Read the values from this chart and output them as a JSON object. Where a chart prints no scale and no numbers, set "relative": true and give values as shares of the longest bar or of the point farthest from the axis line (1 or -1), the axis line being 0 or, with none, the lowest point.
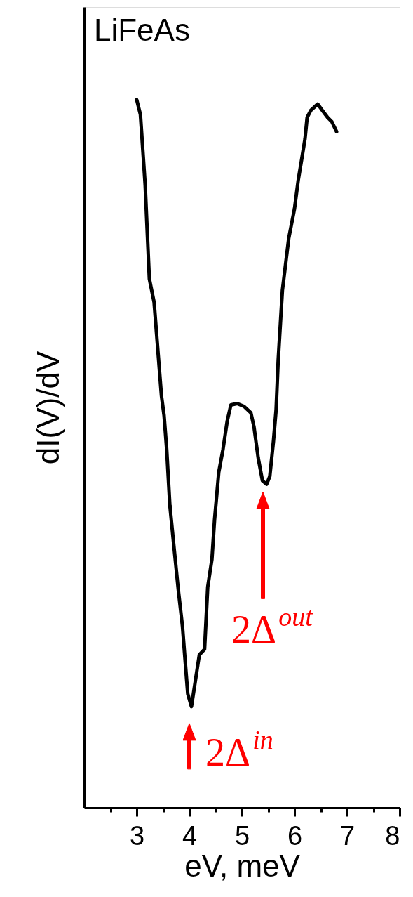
{
  "chart_data": {
    "type": "line",
    "title": "LiFeAs",
    "xlabel": "eV, meV",
    "ylabel": "dI(V)/dV",
    "relative": true,
    "xlim": [
      2,
      8
    ],
    "xticks": [
      {
        "value": 2.5,
        "label": null
      },
      3,
      {
        "value": 3.5,
        "label": null
      },
      4,
      {
        "value": 4.5,
        "label": null
      },
      5,
      {
        "value": 5.5,
        "label": null
      },
      6,
      {
        "value": 6.5,
        "label": null
      },
      7,
      {
        "value": 7.5,
        "label": null
      },
      8
    ],
    "grid": false,
    "marker": "none",
    "line_style": "solid",
    "x": [
      3.0,
      3.07,
      3.16,
      3.2,
      3.24,
      3.33,
      3.4,
      3.47,
      3.52,
      3.57,
      3.63,
      3.71,
      3.79,
      3.87,
      3.92,
      3.97,
      4.04,
      4.11,
      4.19,
      4.29,
      4.35,
      4.43,
      4.48,
      4.56,
      4.64,
      4.72,
      4.79,
      4.91,
      5.04,
      5.17,
      5.23,
      5.31,
      5.39,
      5.47,
      5.53,
      5.6,
      5.65,
      5.69,
      5.77,
      5.89,
      6.0,
      6.07,
      6.13,
      6.2,
      6.24,
      6.31,
      6.44,
      6.53,
      6.63,
      6.71,
      6.8
    ],
    "series": [
      {
        "color": "#000000",
        "values": [
          1.0,
          0.979,
          0.88,
          0.813,
          0.747,
          0.714,
          0.648,
          0.582,
          0.554,
          0.506,
          0.427,
          0.367,
          0.308,
          0.256,
          0.208,
          0.161,
          0.143,
          0.177,
          0.216,
          0.224,
          0.312,
          0.351,
          0.407,
          0.474,
          0.506,
          0.546,
          0.569,
          0.571,
          0.567,
          0.558,
          0.538,
          0.494,
          0.462,
          0.457,
          0.468,
          0.518,
          0.562,
          0.632,
          0.731,
          0.804,
          0.846,
          0.886,
          0.913,
          0.945,
          0.975,
          0.985,
          0.994,
          0.985,
          0.975,
          0.969,
          0.955
        ]
      }
    ],
    "annotations": [
      {
        "text": "2Δ$^{in}$",
        "x": 4.0,
        "y": 0.143
      },
      {
        "text": "2Δ$^{out}$",
        "x": 5.4,
        "y": 0.457
      }
    ]
  }
}
